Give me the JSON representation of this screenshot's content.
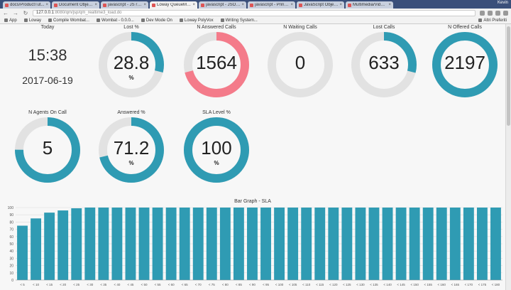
{
  "browser": {
    "tabs": [
      {
        "label": "docs/ProductTut...",
        "active": false
      },
      {
        "label": "Document Object ...",
        "active": false
      },
      {
        "label": "javascript - JS reg...",
        "active": false
      },
      {
        "label": "Loway QueueMet...",
        "active": true
      },
      {
        "label": "javascript - JSON ...",
        "active": false
      },
      {
        "label": "javascript - Print ...",
        "active": false
      },
      {
        "label": "JavaScript Objects",
        "active": false
      },
      {
        "label": "Multimedia/Video...",
        "active": false
      }
    ],
    "user": "Kevin",
    "url_host": "127.0.0.1",
    "url_rest": ":8080/qm/jsp/qm_realtime3_load.do",
    "bookmarks": [
      "App",
      "Loway",
      "Compile Wombat...",
      "Wombat - 0.0.0...",
      "Dev Mode On",
      "Loway PolyVox",
      "Writing System..."
    ],
    "bookmarks_right": "Altri Preferiti"
  },
  "widgets": {
    "today": {
      "title": "Today",
      "time": "15:38",
      "date": "2017-06-19"
    },
    "lost_pct": {
      "title": "Lost %",
      "value": "28.8",
      "unit": "%",
      "fraction": 0.288,
      "color": "#2f9bb3"
    },
    "n_answered": {
      "title": "N Answered Calls",
      "value": "1564",
      "fraction": 0.71,
      "color": "#f47b8a"
    },
    "n_waiting": {
      "title": "N Waiting Calls",
      "value": "0",
      "fraction": 0,
      "color": "#2f9bb3"
    },
    "lost_calls": {
      "title": "Lost Calls",
      "value": "633",
      "fraction": 0.29,
      "color": "#2f9bb3"
    },
    "n_offered": {
      "title": "N Offered Calls",
      "value": "2197",
      "fraction": 1,
      "color": "#2f9bb3"
    },
    "n_agents": {
      "title": "N Agents On Call",
      "value": "5",
      "fraction": 0.75,
      "color": "#2f9bb3"
    },
    "answered_pct": {
      "title": "Answered %",
      "value": "71.2",
      "unit": "%",
      "fraction": 0.712,
      "color": "#2f9bb3"
    },
    "sla_level": {
      "title": "SLA Level %",
      "value": "100",
      "unit": "%",
      "fraction": 1,
      "color": "#2f9bb3"
    }
  },
  "chart_data": {
    "type": "bar",
    "title": "Bar Graph - SLA",
    "categories": [
      "< 5",
      "< 10",
      "< 15",
      "< 20",
      "< 25",
      "< 30",
      "< 35",
      "< 40",
      "< 45",
      "< 50",
      "< 55",
      "< 60",
      "< 65",
      "< 70",
      "< 75",
      "< 80",
      "< 85",
      "< 90",
      "< 95",
      "< 100",
      "< 105",
      "< 110",
      "< 115",
      "< 120",
      "< 125",
      "< 130",
      "< 135",
      "< 140",
      "< 145",
      "< 150",
      "< 155",
      "< 160",
      "< 165",
      "< 170",
      "< 175",
      "< 180"
    ],
    "values": [
      75,
      85,
      93,
      96,
      99,
      100,
      100,
      100,
      100,
      100,
      100,
      100,
      100,
      100,
      100,
      100,
      100,
      100,
      100,
      100,
      100,
      100,
      100,
      100,
      100,
      100,
      100,
      100,
      100,
      100,
      100,
      100,
      100,
      100,
      100,
      100
    ],
    "yticks": [
      "0",
      "10",
      "20",
      "30",
      "40",
      "50",
      "60",
      "70",
      "80",
      "90",
      "100"
    ],
    "ylim": [
      0,
      100
    ],
    "color": "#2f9bb3",
    "grid": true
  }
}
